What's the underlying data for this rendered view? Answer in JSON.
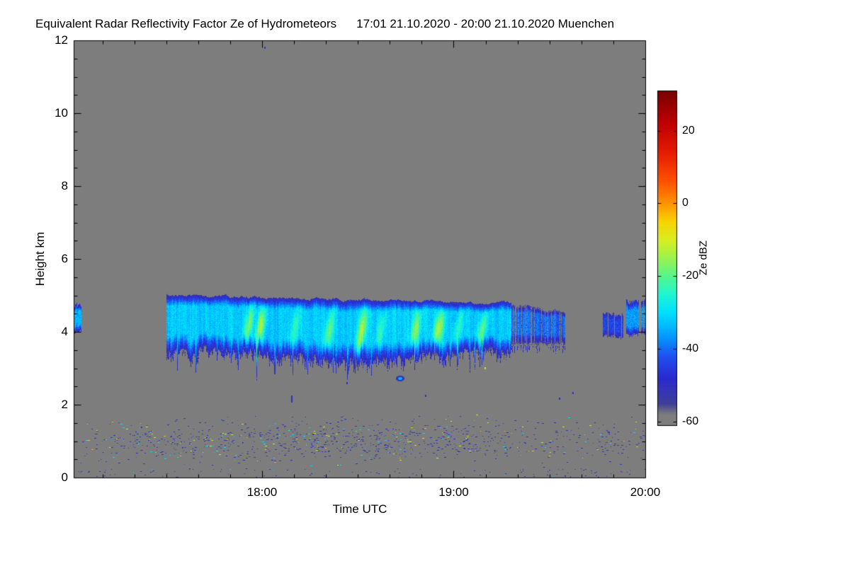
{
  "title": "Equivalent Radar Reflectivity Factor Ze of Hydrometeors",
  "date_range": "17:01 21.10.2020 - 20:00 21.10.2020 Muenchen",
  "chart_data": {
    "type": "heatmap",
    "xlabel": "Time UTC",
    "ylabel": "Height km",
    "x_start_hour": 17.0167,
    "x_end_hour": 20.0,
    "x_ticks": [
      {
        "hour": 18,
        "label": "18:00"
      },
      {
        "hour": 19,
        "label": "19:00"
      },
      {
        "hour": 20,
        "label": "20:00"
      }
    ],
    "x_minor_tick_minutes": 10,
    "y_min_km": 0,
    "y_max_km": 12,
    "y_ticks": [
      {
        "km": 0,
        "label": "0"
      },
      {
        "km": 2,
        "label": "2"
      },
      {
        "km": 4,
        "label": "4"
      },
      {
        "km": 6,
        "label": "6"
      },
      {
        "km": 8,
        "label": "8"
      },
      {
        "km": 10,
        "label": "10"
      },
      {
        "km": 12,
        "label": "12"
      }
    ],
    "background_color": "#7d7d7d",
    "background_dbz": -60,
    "colorbar": {
      "label": "Ze dBZ",
      "min_dbz": -61,
      "max_dbz": 31,
      "ticks": [
        {
          "dbz": 20,
          "label": "20"
        },
        {
          "dbz": 0,
          "label": "0"
        },
        {
          "dbz": -20,
          "label": "-20"
        },
        {
          "dbz": -40,
          "label": "-40"
        },
        {
          "dbz": -60,
          "label": "-60"
        }
      ],
      "stops": [
        [
          -61,
          "#7d7d7d"
        ],
        [
          -58,
          "#7d7d7d"
        ],
        [
          -55,
          "#3f3f9a"
        ],
        [
          -48,
          "#2a2ace"
        ],
        [
          -42,
          "#2050f0"
        ],
        [
          -36,
          "#00a0ff"
        ],
        [
          -30,
          "#00e0ff"
        ],
        [
          -25,
          "#20f5d2"
        ],
        [
          -20,
          "#55f58c"
        ],
        [
          -15,
          "#9cf24e"
        ],
        [
          -10,
          "#d8ee22"
        ],
        [
          -5,
          "#f8d400"
        ],
        [
          0,
          "#ff9400"
        ],
        [
          6,
          "#ff5200"
        ],
        [
          14,
          "#e51c00"
        ],
        [
          22,
          "#bf0000"
        ],
        [
          31,
          "#780000"
        ]
      ]
    },
    "cloud_band": {
      "t_start": 17.5,
      "t_end": 19.58,
      "top_km_start": 5.02,
      "top_km_end": 4.75,
      "base_km_mean": 3.45,
      "core_dbz": -32,
      "edge_dbz": -52,
      "streak_dbz": -14,
      "streak_times": [
        17.93,
        17.99,
        18.17,
        18.35,
        18.52,
        18.62,
        18.8,
        18.92,
        19.02,
        19.15
      ],
      "fallstreak_min_km": 2.85,
      "base_dip_center": 18.5,
      "weak_after": 19.3
    },
    "edge_patches": [
      {
        "t_start": 17.0167,
        "t_end": 17.055,
        "top_km": 4.78,
        "base_km": 3.95,
        "dbz": -34
      },
      {
        "t_start": 19.78,
        "t_end": 19.88,
        "top_km": 4.55,
        "base_km": 3.85,
        "dbz": -44
      },
      {
        "t_start": 19.9,
        "t_end": 20.0,
        "top_km": 4.9,
        "base_km": 3.9,
        "dbz": -36
      }
    ],
    "boundary_layer_speckle": {
      "t_start": 17.05,
      "t_end": 20.0,
      "h_center_km": 1.02,
      "h_spread_km": 0.55,
      "count": 1500,
      "dbz_weights": [
        [
          -54,
          0.6
        ],
        [
          -47,
          0.2
        ],
        [
          -30,
          0.1
        ],
        [
          -13,
          0.06
        ],
        [
          -3,
          0.04
        ]
      ]
    },
    "ground_speckle": {
      "count": 120,
      "h_max_km": 0.25,
      "dbz": -52
    },
    "isolated_features": [
      {
        "t": 18.72,
        "h": 2.72,
        "dbz": -34,
        "type": "blob"
      },
      {
        "t": 18.01,
        "h": 11.82,
        "dbz": -46,
        "type": "dot"
      },
      {
        "t": 18.15,
        "h": 2.25,
        "dbz": -50,
        "type": "dash"
      },
      {
        "t": 18.44,
        "h": 2.62,
        "dbz": -48,
        "type": "dot"
      },
      {
        "t": 19.16,
        "h": 3.02,
        "dbz": -14,
        "type": "dot"
      },
      {
        "t": 18.85,
        "h": 2.28,
        "dbz": -50,
        "type": "dot"
      },
      {
        "t": 19.55,
        "h": 2.2,
        "dbz": -49,
        "type": "dot"
      },
      {
        "t": 19.62,
        "h": 2.35,
        "dbz": -50,
        "type": "dot"
      }
    ]
  }
}
